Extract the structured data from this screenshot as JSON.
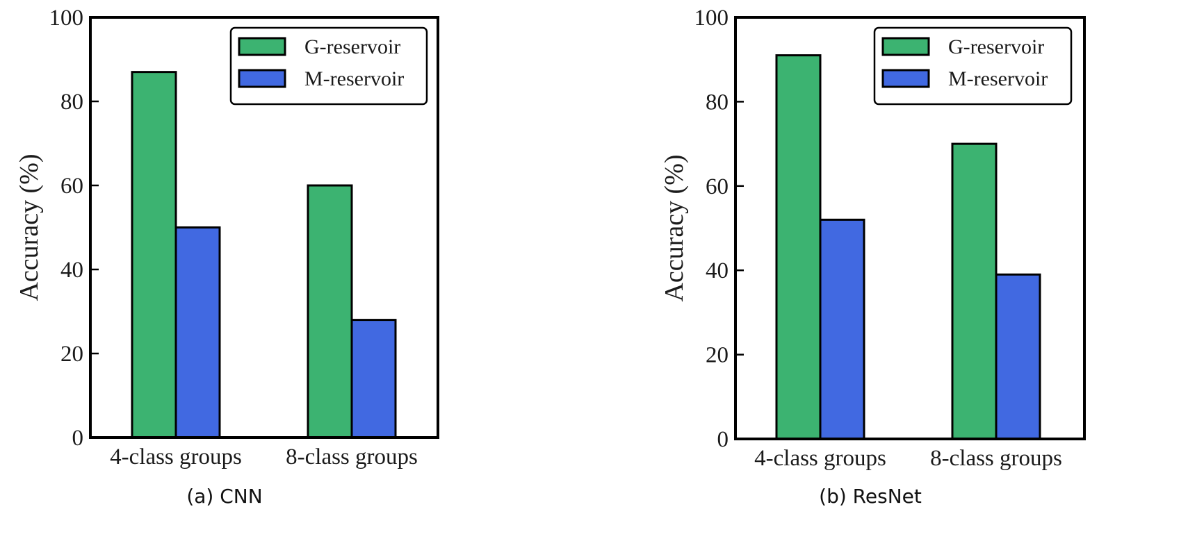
{
  "chart_data": [
    {
      "type": "bar",
      "caption": "(a) CNN",
      "ylabel": "Accuracy (%)",
      "xlabel": "",
      "ylim": [
        0,
        100
      ],
      "yticks": [
        0,
        20,
        40,
        60,
        80,
        100
      ],
      "categories": [
        "4-class groups",
        "8-class groups"
      ],
      "legend_position": "top-right",
      "grid": false,
      "series": [
        {
          "name": "G-reservoir",
          "color": "#3cb371",
          "values": [
            87,
            60
          ]
        },
        {
          "name": "M-reservoir",
          "color": "#4169e1",
          "values": [
            50,
            28
          ]
        }
      ]
    },
    {
      "type": "bar",
      "caption": "(b) ResNet",
      "ylabel": "Accuracy (%)",
      "xlabel": "",
      "ylim": [
        0,
        100
      ],
      "yticks": [
        0,
        20,
        40,
        60,
        80,
        100
      ],
      "categories": [
        "4-class groups",
        "8-class groups"
      ],
      "legend_position": "top-right",
      "grid": false,
      "series": [
        {
          "name": "G-reservoir",
          "color": "#3cb371",
          "values": [
            91,
            70
          ]
        },
        {
          "name": "M-reservoir",
          "color": "#4169e1",
          "values": [
            52,
            39
          ]
        }
      ]
    }
  ]
}
